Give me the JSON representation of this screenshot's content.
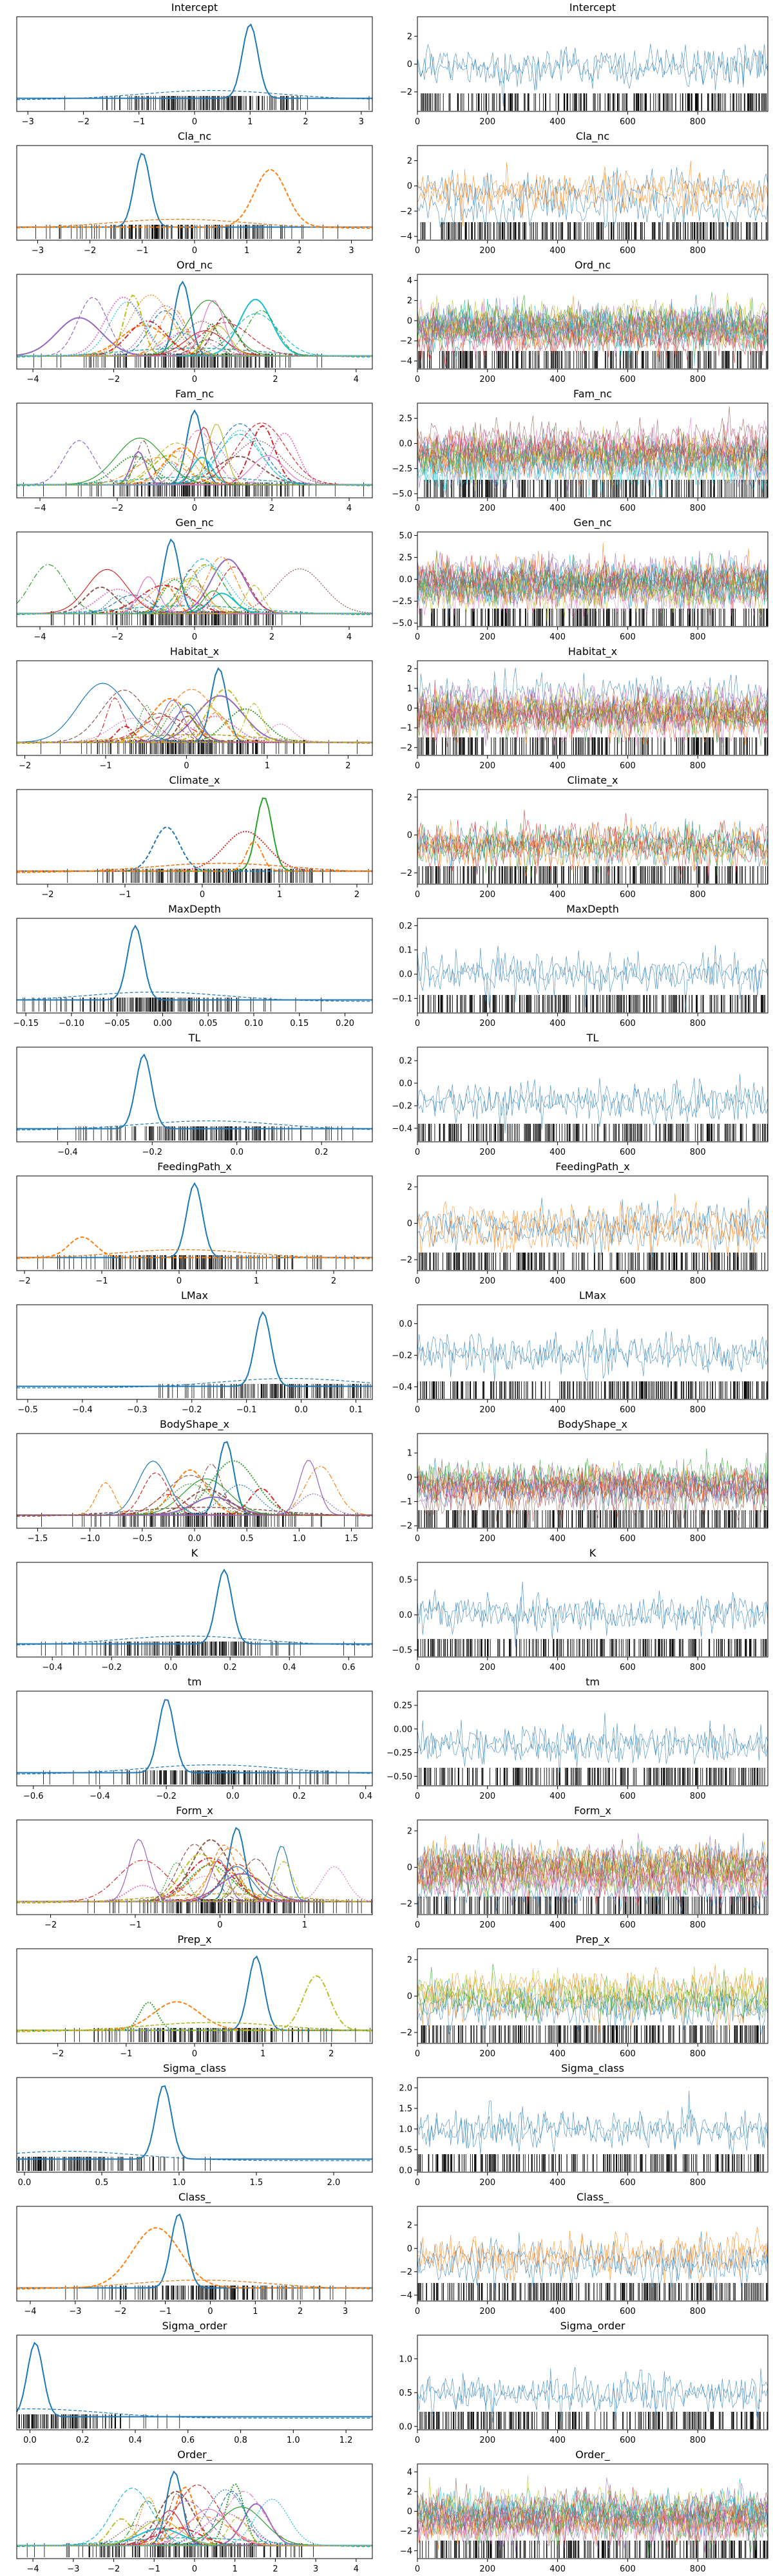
{
  "colors": {
    "blue": "#1f77b4",
    "orange": "#ff7f0e",
    "green": "#2ca02c",
    "red": "#d62728",
    "purple": "#9467bd",
    "brown": "#8c564b",
    "pink": "#e377c2",
    "olive": "#bcbd22",
    "cyan": "#17becf",
    "rug": "#000000"
  },
  "chart_data": {
    "type": "trace_plot",
    "layout": "two columns per variable: posterior density (left) and MCMC trace (right)",
    "rows": [
      {
        "title": "Intercept",
        "kde_xticks": [
          "−3",
          "−2",
          "−1",
          "0",
          "1",
          "2",
          "3"
        ],
        "kde_xlim": [
          -3.2,
          3.2
        ],
        "trace_yticks": [
          "−2",
          "0",
          "2"
        ],
        "trace_ylim": [
          -3.4,
          3.4
        ],
        "peak": 1.0,
        "colors": [
          "blue"
        ]
      },
      {
        "title": "Cla_nc",
        "kde_xticks": [
          "−3",
          "−2",
          "−1",
          "0",
          "1",
          "2",
          "3"
        ],
        "kde_xlim": [
          -3.4,
          3.4
        ],
        "trace_yticks": [
          "−4",
          "−2",
          "0",
          "2"
        ],
        "trace_ylim": [
          -4.3,
          3.2
        ],
        "peak": -1.0,
        "colors": [
          "blue",
          "orange"
        ]
      },
      {
        "title": "Ord_nc",
        "kde_xticks": [
          "−4",
          "−2",
          "0",
          "2",
          "4"
        ],
        "kde_xlim": [
          -4.4,
          4.4
        ],
        "trace_yticks": [
          "−4",
          "−2",
          "0",
          "2",
          "4"
        ],
        "trace_ylim": [
          -4.8,
          4.6
        ],
        "peak": -0.3,
        "colors": [
          "blue",
          "orange",
          "green",
          "red",
          "purple",
          "brown",
          "pink",
          "olive",
          "cyan"
        ]
      },
      {
        "title": "Fam_nc",
        "kde_xticks": [
          "−4",
          "−2",
          "0",
          "2",
          "4"
        ],
        "kde_xlim": [
          -4.6,
          4.6
        ],
        "trace_yticks": [
          "−5.0",
          "−2.5",
          "0.0",
          "2.5"
        ],
        "trace_ylim": [
          -5.4,
          4.0
        ],
        "peak": 0.0,
        "colors": [
          "blue",
          "orange",
          "green",
          "red",
          "purple",
          "brown",
          "pink",
          "olive",
          "cyan"
        ]
      },
      {
        "title": "Gen_nc",
        "kde_xticks": [
          "−4",
          "−2",
          "0",
          "2",
          "4"
        ],
        "kde_xlim": [
          -4.6,
          4.6
        ],
        "trace_yticks": [
          "−5.0",
          "−2.5",
          "0.0",
          "2.5",
          "5.0"
        ],
        "trace_ylim": [
          -5.4,
          5.4
        ],
        "peak": -0.6,
        "colors": [
          "blue",
          "orange",
          "green",
          "red",
          "purple",
          "brown",
          "pink",
          "olive",
          "cyan"
        ]
      },
      {
        "title": "Habitat_x",
        "kde_xticks": [
          "−2",
          "−1",
          "0",
          "1",
          "2"
        ],
        "kde_xlim": [
          -2.1,
          2.3
        ],
        "trace_yticks": [
          "−2",
          "−1",
          "0",
          "1",
          "2"
        ],
        "trace_ylim": [
          -2.4,
          2.4
        ],
        "peak": 0.4,
        "colors": [
          "blue",
          "orange",
          "green",
          "red",
          "purple",
          "brown",
          "pink",
          "olive"
        ]
      },
      {
        "title": "Climate_x",
        "kde_xticks": [
          "−2",
          "−1",
          "0",
          "1",
          "2"
        ],
        "kde_xlim": [
          -2.4,
          2.2
        ],
        "trace_yticks": [
          "−2",
          "0",
          "2"
        ],
        "trace_ylim": [
          -2.6,
          2.4
        ],
        "peak": 0.8,
        "colors": [
          "green",
          "blue",
          "red",
          "orange"
        ]
      },
      {
        "title": "MaxDepth",
        "kde_xticks": [
          "−0.15",
          "−0.10",
          "−0.05",
          "0.00",
          "0.05",
          "0.10",
          "0.15",
          "0.20"
        ],
        "kde_xlim": [
          -0.16,
          0.23
        ],
        "trace_yticks": [
          "−0.1",
          "0.0",
          "0.1",
          "0.2"
        ],
        "trace_ylim": [
          -0.16,
          0.23
        ],
        "peak": -0.03,
        "colors": [
          "blue"
        ]
      },
      {
        "title": "TL",
        "kde_xticks": [
          "−0.4",
          "−0.2",
          "0.0",
          "0.2"
        ],
        "kde_xlim": [
          -0.52,
          0.32
        ],
        "trace_yticks": [
          "−0.4",
          "−0.2",
          "0.0",
          "0.2"
        ],
        "trace_ylim": [
          -0.52,
          0.32
        ],
        "peak": -0.22,
        "colors": [
          "blue"
        ]
      },
      {
        "title": "FeedingPath_x",
        "kde_xticks": [
          "−2",
          "−1",
          "0",
          "1",
          "2"
        ],
        "kde_xlim": [
          -2.1,
          2.5
        ],
        "trace_yticks": [
          "−2",
          "0",
          "2"
        ],
        "trace_ylim": [
          -2.6,
          2.6
        ],
        "peak": 0.2,
        "colors": [
          "blue",
          "orange"
        ]
      },
      {
        "title": "LMax",
        "kde_xticks": [
          "−0.5",
          "−0.4",
          "−0.3",
          "−0.2",
          "−0.1",
          "0.0",
          "0.1"
        ],
        "kde_xlim": [
          -0.52,
          0.13
        ],
        "trace_yticks": [
          "−0.4",
          "−0.2",
          "0.0"
        ],
        "trace_ylim": [
          -0.48,
          0.12
        ],
        "peak": -0.07,
        "colors": [
          "blue"
        ]
      },
      {
        "title": "BodyShape_x",
        "kde_xticks": [
          "−1.5",
          "−1.0",
          "−0.5",
          "0.0",
          "0.5",
          "1.0",
          "1.5"
        ],
        "kde_xlim": [
          -1.7,
          1.7
        ],
        "trace_yticks": [
          "−2",
          "−1",
          "0",
          "1"
        ],
        "trace_ylim": [
          -2.1,
          1.8
        ],
        "peak": 0.3,
        "colors": [
          "blue",
          "orange",
          "green",
          "red",
          "purple",
          "brown"
        ]
      },
      {
        "title": "K",
        "kde_xticks": [
          "−0.4",
          "−0.2",
          "0.0",
          "0.2",
          "0.4",
          "0.6"
        ],
        "kde_xlim": [
          -0.52,
          0.68
        ],
        "trace_yticks": [
          "−0.5",
          "0.0",
          "0.5"
        ],
        "trace_ylim": [
          -0.6,
          0.75
        ],
        "peak": 0.18,
        "colors": [
          "blue"
        ]
      },
      {
        "title": "tm",
        "kde_xticks": [
          "−0.6",
          "−0.4",
          "−0.2",
          "0.0",
          "0.2",
          "0.4"
        ],
        "kde_xlim": [
          -0.65,
          0.42
        ],
        "trace_yticks": [
          "−0.50",
          "−0.25",
          "0.00",
          "0.25"
        ],
        "trace_ylim": [
          -0.6,
          0.4
        ],
        "peak": -0.2,
        "colors": [
          "blue"
        ]
      },
      {
        "title": "Form_x",
        "kde_xticks": [
          "−2",
          "−1",
          "0",
          "1"
        ],
        "kde_xlim": [
          -2.4,
          1.8
        ],
        "trace_yticks": [
          "−2",
          "0",
          "2"
        ],
        "trace_ylim": [
          -2.6,
          2.6
        ],
        "peak": 0.2,
        "colors": [
          "blue",
          "orange",
          "green",
          "red",
          "purple",
          "brown",
          "pink",
          "olive"
        ]
      },
      {
        "title": "Prep_x",
        "kde_xticks": [
          "−2",
          "−1",
          "0",
          "1",
          "2"
        ],
        "kde_xlim": [
          -2.6,
          2.6
        ],
        "trace_yticks": [
          "−2",
          "0",
          "2"
        ],
        "trace_ylim": [
          -2.6,
          2.6
        ],
        "peak": 0.9,
        "colors": [
          "blue",
          "orange",
          "green",
          "olive"
        ]
      },
      {
        "title": "Sigma_class",
        "kde_xticks": [
          "0.0",
          "0.5",
          "1.0",
          "1.5",
          "2.0"
        ],
        "kde_xlim": [
          -0.05,
          2.25
        ],
        "trace_yticks": [
          "0.0",
          "0.5",
          "1.0",
          "1.5",
          "2.0"
        ],
        "trace_ylim": [
          -0.05,
          2.25
        ],
        "peak": 0.9,
        "colors": [
          "blue"
        ]
      },
      {
        "title": "Class_",
        "kde_xticks": [
          "−4",
          "−3",
          "−2",
          "−1",
          "0",
          "1",
          "2",
          "3"
        ],
        "kde_xlim": [
          -4.3,
          3.6
        ],
        "trace_yticks": [
          "−4",
          "−2",
          "0",
          "2"
        ],
        "trace_ylim": [
          -4.5,
          3.6
        ],
        "peak": -0.7,
        "colors": [
          "blue",
          "orange"
        ]
      },
      {
        "title": "Sigma_order",
        "kde_xticks": [
          "0.0",
          "0.2",
          "0.4",
          "0.6",
          "0.8",
          "1.0",
          "1.2"
        ],
        "kde_xlim": [
          -0.05,
          1.3
        ],
        "trace_yticks": [
          "0.0",
          "0.5",
          "1.0"
        ],
        "trace_ylim": [
          -0.05,
          1.35
        ],
        "peak": 0.02,
        "colors": [
          "blue"
        ]
      },
      {
        "title": "Order_",
        "kde_xticks": [
          "−4",
          "−3",
          "−2",
          "−1",
          "0",
          "1",
          "2",
          "3",
          "4"
        ],
        "kde_xlim": [
          -4.4,
          4.4
        ],
        "trace_yticks": [
          "−4",
          "−2",
          "0",
          "2",
          "4"
        ],
        "trace_ylim": [
          -4.8,
          4.8
        ],
        "peak": -0.5,
        "colors": [
          "blue",
          "orange",
          "green",
          "red",
          "purple",
          "brown",
          "pink",
          "olive",
          "cyan"
        ]
      }
    ],
    "trace_x": {
      "xlim": [
        0,
        1000
      ],
      "xticks": [
        "0",
        "200",
        "400",
        "600",
        "800"
      ],
      "values": [
        0,
        200,
        400,
        600,
        800
      ]
    }
  }
}
